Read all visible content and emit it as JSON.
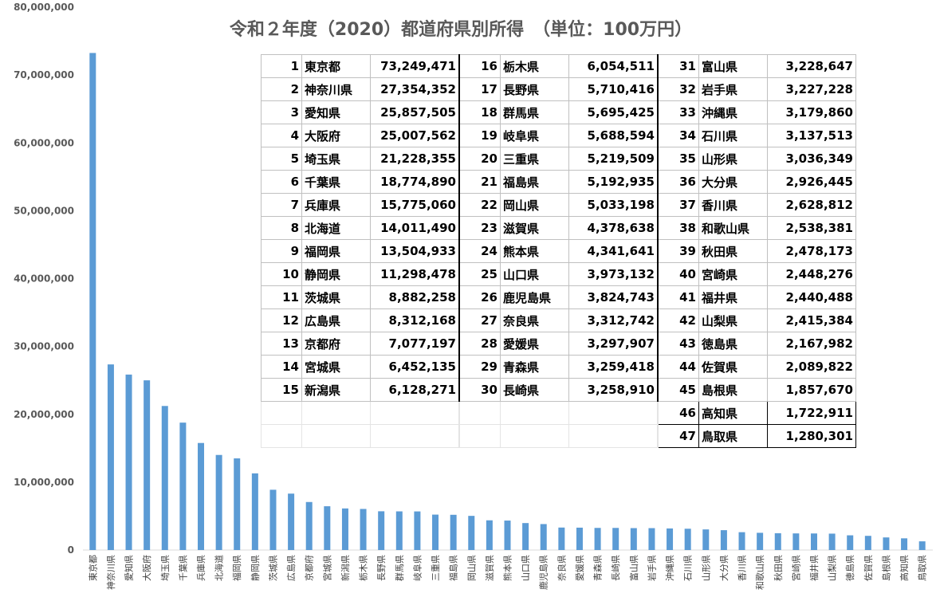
{
  "chart_data": {
    "type": "bar",
    "title": "令和２年度（2020）都道府県別所得　（単位：100万円）",
    "ylim": [
      0,
      80000000
    ],
    "yticks": [
      "0",
      "10,000,000",
      "20,000,000",
      "30,000,000",
      "40,000,000",
      "50,000,000",
      "60,000,000",
      "70,000,000",
      "80,000,000"
    ],
    "grid": false,
    "categories": [
      "東京都",
      "神奈川県",
      "愛知県",
      "大阪府",
      "埼玉県",
      "千葉県",
      "兵庫県",
      "北海道",
      "福岡県",
      "静岡県",
      "茨城県",
      "広島県",
      "京都府",
      "宮城県",
      "新潟県",
      "栃木県",
      "長野県",
      "群馬県",
      "岐阜県",
      "三重県",
      "福島県",
      "岡山県",
      "滋賀県",
      "熊本県",
      "山口県",
      "鹿児島県",
      "奈良県",
      "愛媛県",
      "青森県",
      "長崎県",
      "富山県",
      "岩手県",
      "沖縄県",
      "石川県",
      "山形県",
      "大分県",
      "香川県",
      "和歌山県",
      "秋田県",
      "宮崎県",
      "福井県",
      "山梨県",
      "徳島県",
      "佐賀県",
      "島根県",
      "高知県",
      "鳥取県"
    ],
    "values": [
      73249471,
      27354352,
      25857505,
      25007562,
      21228355,
      18774890,
      15775060,
      14011490,
      13504933,
      11298478,
      8882258,
      8312168,
      7077197,
      6452135,
      6128271,
      6054511,
      5710416,
      5695425,
      5688594,
      5219509,
      5192935,
      5033198,
      4378638,
      4341641,
      3973132,
      3824743,
      3312742,
      3297907,
      3259418,
      3258910,
      3228647,
      3227228,
      3179860,
      3137513,
      3036349,
      2926445,
      2628812,
      2538381,
      2478173,
      2448276,
      2440488,
      2415384,
      2167982,
      2089822,
      1857670,
      1722911,
      1280301
    ]
  },
  "table": {
    "rows": [
      [
        {
          "rank": "1",
          "name": "東京都",
          "value": "73,249,471"
        },
        {
          "rank": "16",
          "name": "栃木県",
          "value": "6,054,511"
        },
        {
          "rank": "31",
          "name": "富山県",
          "value": "3,228,647"
        }
      ],
      [
        {
          "rank": "2",
          "name": "神奈川県",
          "value": "27,354,352"
        },
        {
          "rank": "17",
          "name": "長野県",
          "value": "5,710,416"
        },
        {
          "rank": "32",
          "name": "岩手県",
          "value": "3,227,228"
        }
      ],
      [
        {
          "rank": "3",
          "name": "愛知県",
          "value": "25,857,505"
        },
        {
          "rank": "18",
          "name": "群馬県",
          "value": "5,695,425"
        },
        {
          "rank": "33",
          "name": "沖縄県",
          "value": "3,179,860"
        }
      ],
      [
        {
          "rank": "4",
          "name": "大阪府",
          "value": "25,007,562"
        },
        {
          "rank": "19",
          "name": "岐阜県",
          "value": "5,688,594"
        },
        {
          "rank": "34",
          "name": "石川県",
          "value": "3,137,513"
        }
      ],
      [
        {
          "rank": "5",
          "name": "埼玉県",
          "value": "21,228,355"
        },
        {
          "rank": "20",
          "name": "三重県",
          "value": "5,219,509"
        },
        {
          "rank": "35",
          "name": "山形県",
          "value": "3,036,349"
        }
      ],
      [
        {
          "rank": "6",
          "name": "千葉県",
          "value": "18,774,890"
        },
        {
          "rank": "21",
          "name": "福島県",
          "value": "5,192,935"
        },
        {
          "rank": "36",
          "name": "大分県",
          "value": "2,926,445"
        }
      ],
      [
        {
          "rank": "7",
          "name": "兵庫県",
          "value": "15,775,060"
        },
        {
          "rank": "22",
          "name": "岡山県",
          "value": "5,033,198"
        },
        {
          "rank": "37",
          "name": "香川県",
          "value": "2,628,812"
        }
      ],
      [
        {
          "rank": "8",
          "name": "北海道",
          "value": "14,011,490"
        },
        {
          "rank": "23",
          "name": "滋賀県",
          "value": "4,378,638"
        },
        {
          "rank": "38",
          "name": "和歌山県",
          "value": "2,538,381"
        }
      ],
      [
        {
          "rank": "9",
          "name": "福岡県",
          "value": "13,504,933"
        },
        {
          "rank": "24",
          "name": "熊本県",
          "value": "4,341,641"
        },
        {
          "rank": "39",
          "name": "秋田県",
          "value": "2,478,173"
        }
      ],
      [
        {
          "rank": "10",
          "name": "静岡県",
          "value": "11,298,478"
        },
        {
          "rank": "25",
          "name": "山口県",
          "value": "3,973,132"
        },
        {
          "rank": "40",
          "name": "宮崎県",
          "value": "2,448,276"
        }
      ],
      [
        {
          "rank": "11",
          "name": "茨城県",
          "value": "8,882,258"
        },
        {
          "rank": "26",
          "name": "鹿児島県",
          "value": "3,824,743"
        },
        {
          "rank": "41",
          "name": "福井県",
          "value": "2,440,488"
        }
      ],
      [
        {
          "rank": "12",
          "name": "広島県",
          "value": "8,312,168"
        },
        {
          "rank": "27",
          "name": "奈良県",
          "value": "3,312,742"
        },
        {
          "rank": "42",
          "name": "山梨県",
          "value": "2,415,384"
        }
      ],
      [
        {
          "rank": "13",
          "name": "京都府",
          "value": "7,077,197"
        },
        {
          "rank": "28",
          "name": "愛媛県",
          "value": "3,297,907"
        },
        {
          "rank": "43",
          "name": "徳島県",
          "value": "2,167,982"
        }
      ],
      [
        {
          "rank": "14",
          "name": "宮城県",
          "value": "6,452,135"
        },
        {
          "rank": "29",
          "name": "青森県",
          "value": "3,259,418"
        },
        {
          "rank": "44",
          "name": "佐賀県",
          "value": "2,089,822"
        }
      ],
      [
        {
          "rank": "15",
          "name": "新潟県",
          "value": "6,128,271"
        },
        {
          "rank": "30",
          "name": "長崎県",
          "value": "3,258,910"
        },
        {
          "rank": "45",
          "name": "島根県",
          "value": "1,857,670"
        }
      ],
      [
        null,
        null,
        {
          "rank": "46",
          "name": "高知県",
          "value": "1,722,911"
        }
      ],
      [
        null,
        null,
        {
          "rank": "47",
          "name": "鳥取県",
          "value": "1,280,301"
        }
      ]
    ]
  },
  "colors": {
    "bar": "#5b9bd5",
    "text": "#595959"
  }
}
